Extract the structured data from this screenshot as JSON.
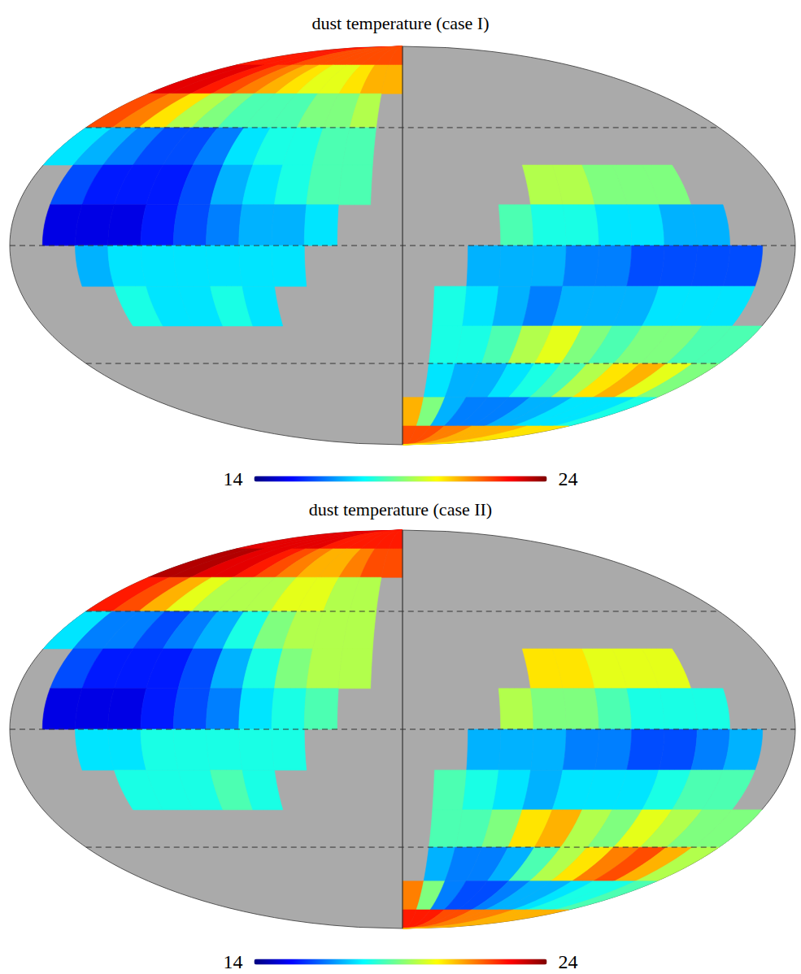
{
  "chart_data": [
    {
      "type": "heatmap",
      "title": "dust temperature (case I)",
      "tick_labels": false,
      "lon": [
        172.5,
        157.5,
        142.5,
        127.5,
        112.5,
        97.5,
        82.5,
        67.5,
        52.5,
        37.5,
        22.5,
        7.5,
        -7.5,
        -22.5,
        -37.5,
        -52.5,
        -67.5,
        -82.5,
        -97.5,
        -112.5,
        -127.5,
        -142.5,
        -157.5,
        -172.5
      ],
      "lat": [
        82.5,
        67.5,
        52.5,
        37.5,
        22.5,
        7.5,
        -7.5,
        -22.5,
        -37.5,
        -52.5,
        -67.5,
        -82.5
      ],
      "values": [
        [
          22.5,
          22.5,
          22.5,
          22.5,
          22,
          22,
          22,
          22,
          22,
          22,
          22,
          22,
          null,
          null,
          null,
          null,
          null,
          null,
          null,
          null,
          null,
          null,
          null,
          null
        ],
        [
          23,
          23,
          22.5,
          22,
          21.5,
          21,
          20.5,
          20,
          20,
          20.5,
          21,
          21,
          null,
          null,
          null,
          null,
          null,
          null,
          null,
          null,
          null,
          null,
          null,
          null
        ],
        [
          22,
          21.5,
          20.5,
          19.5,
          19,
          18.5,
          18.5,
          18.5,
          19,
          19,
          19.5,
          null,
          null,
          null,
          null,
          null,
          null,
          null,
          null,
          null,
          null,
          null,
          null,
          null
        ],
        [
          17.5,
          17,
          16.5,
          16,
          16,
          16.5,
          17.5,
          18,
          18,
          18.5,
          18.5,
          null,
          null,
          null,
          null,
          null,
          null,
          null,
          null,
          null,
          null,
          null,
          null,
          null
        ],
        [
          null,
          16,
          15.5,
          15.5,
          15.5,
          16,
          17,
          17.5,
          18,
          18.5,
          18.5,
          null,
          null,
          null,
          null,
          null,
          19.5,
          19.5,
          19,
          19,
          19,
          null,
          null,
          null
        ],
        [
          null,
          15,
          15,
          15,
          15.5,
          16,
          16.5,
          17,
          17,
          17.5,
          null,
          null,
          null,
          null,
          null,
          18.5,
          18,
          18,
          17.5,
          17.5,
          17,
          17,
          null,
          null
        ],
        [
          null,
          null,
          17,
          17.5,
          17.5,
          17.5,
          17.5,
          17.5,
          17.5,
          null,
          null,
          null,
          null,
          null,
          17,
          17,
          17,
          16.5,
          16.5,
          16,
          16,
          16,
          16,
          null
        ],
        [
          null,
          null,
          null,
          18,
          17.5,
          17.5,
          18,
          17.5,
          null,
          null,
          null,
          null,
          null,
          18,
          17.5,
          17,
          16.5,
          17,
          17,
          17,
          17.5,
          17.5,
          17.5,
          null
        ],
        [
          null,
          null,
          null,
          null,
          null,
          null,
          null,
          null,
          null,
          null,
          null,
          null,
          null,
          18,
          18,
          18.5,
          19.5,
          20,
          19,
          18.5,
          19,
          19,
          18.5,
          18.5
        ],
        [
          null,
          null,
          null,
          null,
          null,
          null,
          null,
          null,
          null,
          null,
          null,
          null,
          null,
          17.5,
          17,
          17,
          17.5,
          18,
          18.5,
          19.5,
          20.5,
          21,
          20,
          19
        ],
        [
          null,
          null,
          null,
          null,
          null,
          null,
          null,
          null,
          null,
          null,
          null,
          null,
          21,
          19,
          17,
          16.5,
          16.5,
          16.5,
          17,
          17,
          17.5,
          17.5,
          17.5,
          18
        ],
        [
          null,
          null,
          null,
          null,
          null,
          null,
          null,
          null,
          null,
          null,
          null,
          null,
          22,
          22,
          22,
          21.5,
          21.5,
          21,
          21,
          21,
          21,
          20.5,
          20.5,
          20.5
        ]
      ],
      "color_range": [
        14,
        24
      ],
      "color_ticks": [
        14,
        24
      ]
    },
    {
      "type": "heatmap",
      "title": "dust temperature (case II)",
      "tick_labels": false,
      "lon": [
        172.5,
        157.5,
        142.5,
        127.5,
        112.5,
        97.5,
        82.5,
        67.5,
        52.5,
        37.5,
        22.5,
        7.5,
        -7.5,
        -22.5,
        -37.5,
        -52.5,
        -67.5,
        -82.5,
        -97.5,
        -112.5,
        -127.5,
        -142.5,
        -157.5,
        -172.5
      ],
      "lat": [
        82.5,
        67.5,
        52.5,
        37.5,
        22.5,
        7.5,
        -7.5,
        -22.5,
        -37.5,
        -52.5,
        -67.5,
        -82.5
      ],
      "values": [
        [
          23,
          23,
          23,
          23,
          23,
          23,
          22.5,
          22.5,
          22.5,
          22.5,
          22.5,
          22.5,
          null,
          null,
          null,
          null,
          null,
          null,
          null,
          null,
          null,
          null,
          null,
          null
        ],
        [
          23.5,
          23.5,
          23,
          23,
          22.5,
          22,
          21.5,
          21,
          21,
          21.5,
          22,
          22,
          null,
          null,
          null,
          null,
          null,
          null,
          null,
          null,
          null,
          null,
          null,
          null
        ],
        [
          22.5,
          22,
          21,
          20,
          19.5,
          19.5,
          19.5,
          20,
          20,
          19.5,
          19.5,
          null,
          null,
          null,
          null,
          null,
          null,
          null,
          null,
          null,
          null,
          null,
          null,
          null
        ],
        [
          17.5,
          16.5,
          16.5,
          16,
          16.5,
          17,
          18,
          19,
          19.5,
          19.5,
          19.5,
          null,
          null,
          null,
          null,
          null,
          null,
          null,
          null,
          null,
          null,
          null,
          null,
          null
        ],
        [
          null,
          16,
          15.5,
          15.5,
          15.5,
          16,
          17,
          18,
          19,
          19.5,
          19.5,
          null,
          null,
          null,
          null,
          null,
          20.5,
          20.5,
          20,
          20,
          20,
          null,
          null,
          null
        ],
        [
          null,
          15,
          15,
          15,
          15.5,
          16,
          16.5,
          17.5,
          18,
          18.5,
          null,
          null,
          null,
          null,
          null,
          19.5,
          19,
          19,
          18.5,
          18,
          18,
          18,
          null,
          null
        ],
        [
          null,
          null,
          17.5,
          17.5,
          18,
          18,
          18,
          18,
          18,
          null,
          null,
          null,
          null,
          null,
          17,
          17,
          17,
          16.5,
          16.5,
          16,
          16,
          16.5,
          17,
          null
        ],
        [
          null,
          null,
          null,
          18,
          18,
          18,
          18.5,
          18,
          null,
          null,
          null,
          null,
          null,
          18.5,
          18,
          17.5,
          17,
          17.5,
          17.5,
          17.5,
          18,
          18.5,
          18.5,
          null
        ],
        [
          null,
          null,
          null,
          null,
          null,
          null,
          null,
          null,
          null,
          null,
          null,
          null,
          null,
          18.5,
          18.5,
          19,
          20.5,
          21,
          19.5,
          19,
          20,
          19.5,
          19,
          19
        ],
        [
          null,
          null,
          null,
          null,
          null,
          null,
          null,
          null,
          null,
          null,
          null,
          null,
          null,
          17,
          16.5,
          16.5,
          17,
          18.5,
          19.5,
          20.5,
          21.5,
          22,
          21,
          19.5
        ],
        [
          null,
          null,
          null,
          null,
          null,
          null,
          null,
          null,
          null,
          null,
          null,
          null,
          21.5,
          19,
          16.5,
          16,
          16,
          16.5,
          17,
          17,
          17.5,
          18,
          18,
          18.5
        ],
        [
          null,
          null,
          null,
          null,
          null,
          null,
          null,
          null,
          null,
          null,
          null,
          null,
          22.5,
          22.5,
          22.5,
          22,
          22,
          21.5,
          21.5,
          21.5,
          21,
          21,
          21,
          21
        ]
      ],
      "color_range": [
        14,
        24
      ],
      "color_ticks": [
        14,
        24
      ]
    }
  ]
}
